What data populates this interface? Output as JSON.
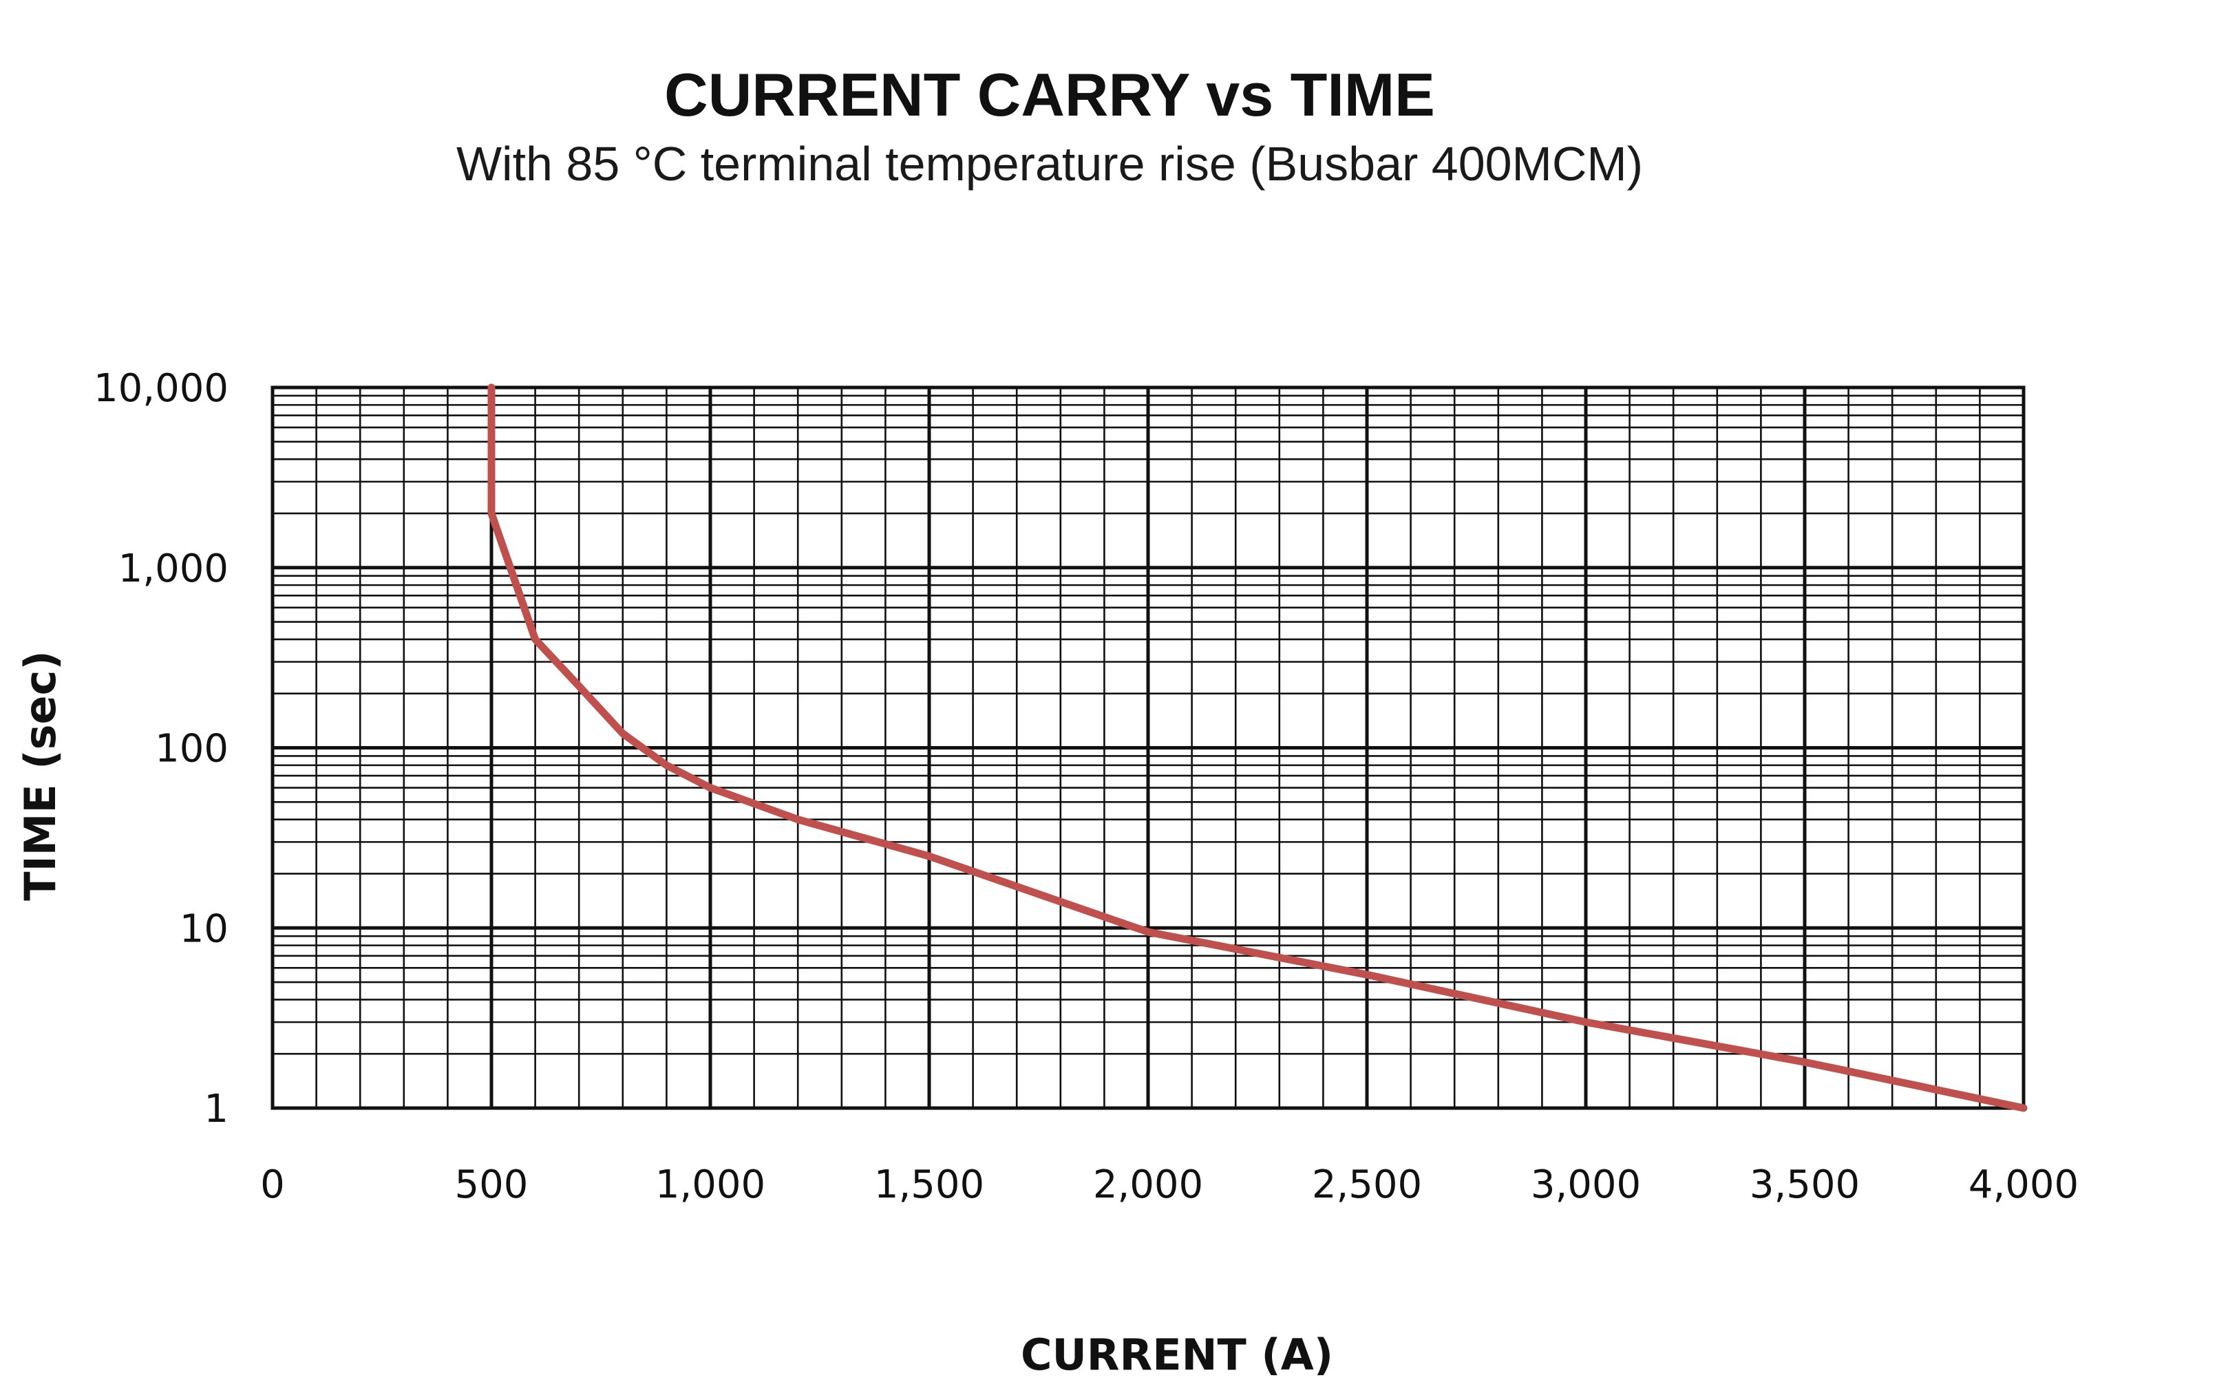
{
  "chart_data": {
    "type": "line",
    "title": "CURRENT CARRY vs TIME",
    "subtitle": "With 85 °C terminal temperature rise (Busbar 400MCM)",
    "xlabel": "CURRENT (A)",
    "ylabel": "TIME (sec)",
    "xlim": [
      0,
      4000
    ],
    "ylim": [
      1,
      10000
    ],
    "y_scale": "log",
    "x_ticks": [
      0,
      500,
      1000,
      1500,
      2000,
      2500,
      3000,
      3500,
      4000
    ],
    "x_tick_labels": [
      "0",
      "500",
      "1,000",
      "1,500",
      "2,000",
      "2,500",
      "3,000",
      "3,500",
      "4,000"
    ],
    "y_ticks": [
      1,
      10,
      100,
      1000,
      10000
    ],
    "y_tick_labels": [
      "1",
      "10",
      "100",
      "1,000",
      "10,000"
    ],
    "x_minor_step": 100,
    "grid": true,
    "legend": "none",
    "series": [
      {
        "color": "#c0504d",
        "x": [
          500,
          500,
          600,
          700,
          800,
          900,
          1000,
          1200,
          1500,
          2000,
          2500,
          3000,
          3500,
          4000
        ],
        "y": [
          10000,
          2000,
          400,
          220,
          120,
          80,
          60,
          40,
          25,
          9.5,
          5.5,
          3,
          1.8,
          1
        ]
      }
    ]
  }
}
